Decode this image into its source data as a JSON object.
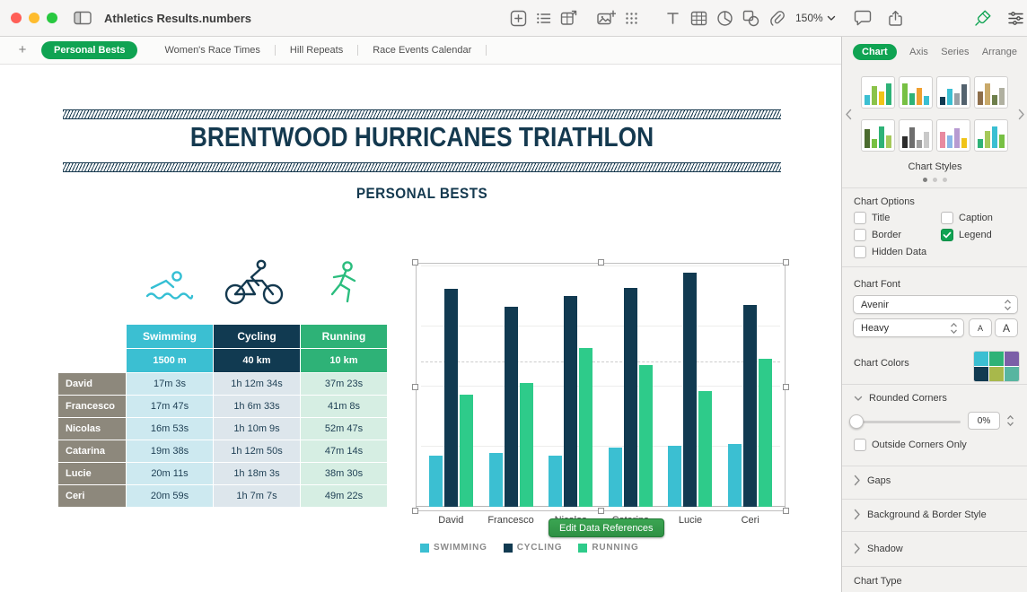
{
  "window": {
    "title": "Athletics Results.numbers",
    "zoom_level": "150%",
    "add_sheet_label": "+"
  },
  "toolbar": {
    "insert_icons": [
      "insert-category-icon",
      "list-icon",
      "pivot-table-icon"
    ],
    "media_icons": [
      "media-add-icon",
      "grid-icon"
    ],
    "object_icons": [
      "text-box-icon",
      "table-icon",
      "chart-icon",
      "shape-icon",
      "attachment-icon"
    ],
    "right_icons": [
      "comment-icon",
      "share-icon",
      "format-brush-icon",
      "organize-icon"
    ]
  },
  "tabs": [
    {
      "label": "Personal Bests",
      "active": true
    },
    {
      "label": "Women's Race Times",
      "active": false
    },
    {
      "label": "Hill Repeats",
      "active": false
    },
    {
      "label": "Race Events Calendar",
      "active": false
    }
  ],
  "sheet": {
    "title": "BRENTWOOD HURRICANES TRIATHLON",
    "subtitle": "PERSONAL BESTS",
    "sport_icons": [
      "swimmer-icon",
      "cyclist-icon",
      "runner-icon"
    ],
    "edit_button_label": "Edit Data References"
  },
  "table": {
    "columns": [
      {
        "sport": "Swimming",
        "distance": "1500 m",
        "color": "#3bbfd2",
        "tint": "#cde9f0"
      },
      {
        "sport": "Cycling",
        "distance": "40 km",
        "color": "#113a51",
        "tint": "#dde6ec"
      },
      {
        "sport": "Running",
        "distance": "10 km",
        "color": "#2eb277",
        "tint": "#d6eee3"
      }
    ],
    "rows": [
      {
        "name": "David",
        "values": [
          "17m 3s",
          "1h 12m 34s",
          "37m 23s"
        ]
      },
      {
        "name": "Francesco",
        "values": [
          "17m 47s",
          "1h 6m 33s",
          "41m 8s"
        ]
      },
      {
        "name": "Nicolas",
        "values": [
          "16m 53s",
          "1h 10m 9s",
          "52m 47s"
        ]
      },
      {
        "name": "Catarina",
        "values": [
          "19m 38s",
          "1h 12m 50s",
          "47m 14s"
        ]
      },
      {
        "name": "Lucie",
        "values": [
          "20m 11s",
          "1h 18m 3s",
          "38m 30s"
        ]
      },
      {
        "name": "Ceri",
        "values": [
          "20m 59s",
          "1h 7m 7s",
          "49m 22s"
        ]
      }
    ]
  },
  "chart_data": {
    "type": "bar",
    "title": "",
    "categories": [
      "David",
      "Francesco",
      "Nicolas",
      "Catarina",
      "Lucie",
      "Ceri"
    ],
    "series": [
      {
        "name": "SWIMMING",
        "color": "#3bbfd2",
        "values_minutes": [
          17.05,
          17.78,
          16.88,
          19.63,
          20.18,
          20.98
        ]
      },
      {
        "name": "CYCLING",
        "color": "#113a51",
        "values_minutes": [
          72.57,
          66.55,
          70.15,
          72.83,
          78.05,
          67.12
        ]
      },
      {
        "name": "RUNNING",
        "color": "#2ecb8a",
        "values_minutes": [
          37.38,
          41.13,
          52.78,
          47.23,
          38.5,
          49.37
        ]
      }
    ],
    "unit": "minutes",
    "ylim": [
      0,
      80
    ],
    "grid": true,
    "legend_position": "bottom"
  },
  "sidebar": {
    "tabs": [
      {
        "label": "Chart",
        "active": true
      },
      {
        "label": "Axis",
        "active": false
      },
      {
        "label": "Series",
        "active": false
      },
      {
        "label": "Arrange",
        "active": false
      }
    ],
    "styles_label": "Chart Styles",
    "pagination_dots": 3,
    "style_thumbnails": [
      {
        "bars": [
          "#3bbfd2",
          "#8bc34a",
          "#f0c419",
          "#2eb277"
        ]
      },
      {
        "bars": [
          "#77c043",
          "#2eb277",
          "#f0a030",
          "#3bbfd2"
        ]
      },
      {
        "bars": [
          "#113a51",
          "#3bbfd2",
          "#9aa0a6",
          "#53626e"
        ]
      },
      {
        "bars": [
          "#8d6e4b",
          "#c9a96a",
          "#6e7f4b",
          "#b0b0a0"
        ]
      },
      {
        "bars": [
          "#4b6b2f",
          "#77c043",
          "#2eb277",
          "#a5c95a"
        ]
      },
      {
        "bars": [
          "#2d2d2d",
          "#6e6e6e",
          "#9e9e9e",
          "#c9c9c9"
        ]
      },
      {
        "bars": [
          "#e88aa0",
          "#8ab6e8",
          "#b79ad1",
          "#f0c419"
        ]
      },
      {
        "bars": [
          "#2eb277",
          "#a5c95a",
          "#3bbfd2",
          "#77c043"
        ]
      }
    ],
    "options_heading": "Chart Options",
    "option_checkboxes": [
      {
        "label": "Title",
        "checked": false
      },
      {
        "label": "Caption",
        "checked": false
      },
      {
        "label": "Border",
        "checked": false
      },
      {
        "label": "Legend",
        "checked": true
      },
      {
        "label": "Hidden Data",
        "checked": false
      }
    ],
    "font_heading": "Chart Font",
    "font_family": "Avenir",
    "font_weight": "Heavy",
    "font_size_buttons": [
      "A",
      "A"
    ],
    "colors_label": "Chart Colors",
    "color_swatches": [
      "#3bbfd2",
      "#2eb277",
      "#7b5ea7",
      "#113a51",
      "#a8b84b",
      "#58b5a0"
    ],
    "rounded_heading": "Rounded Corners",
    "rounded_value": "0%",
    "outside_corners_label": "Outside Corners Only",
    "collapsed_sections": [
      "Gaps",
      "Background & Border Style",
      "Shadow"
    ],
    "chart_type_label": "Chart Type"
  },
  "colors": {
    "accent_green": "#0fa352",
    "navy": "#113a51",
    "teal": "#3bbfd2",
    "green": "#2ecb8a"
  }
}
